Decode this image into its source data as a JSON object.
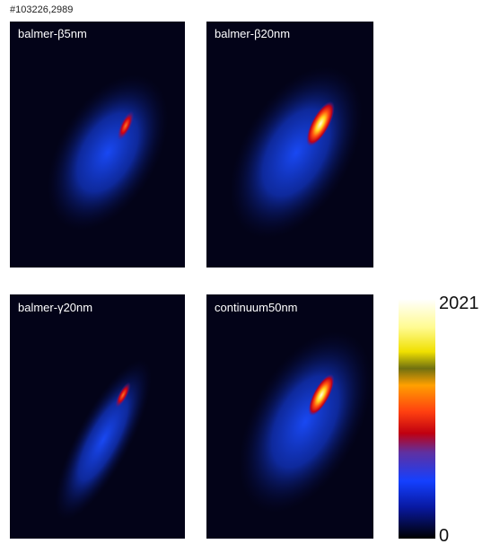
{
  "figure_id": "#103226,2989",
  "panels": [
    {
      "label": "balmer-β5nm"
    },
    {
      "label": "balmer-β20nm"
    },
    {
      "label": "balmer-γ20nm"
    },
    {
      "label": "continuum50nm"
    }
  ],
  "colorbar": {
    "max": 2021,
    "min": 0
  }
}
